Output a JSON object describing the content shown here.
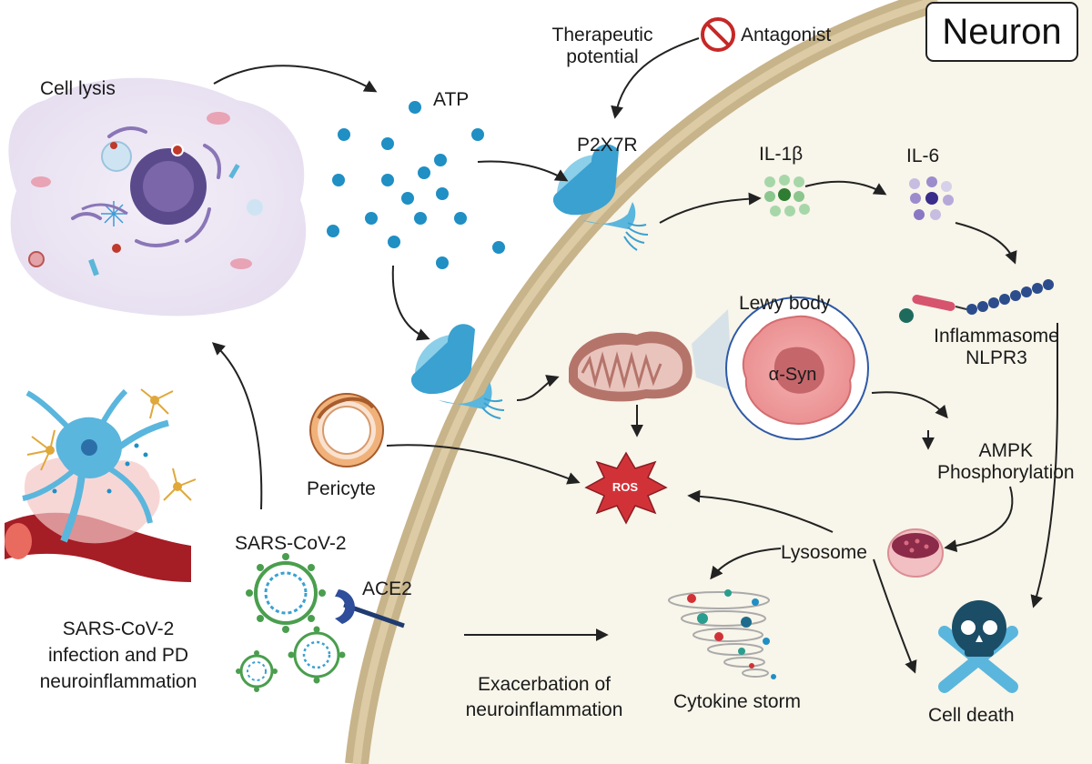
{
  "title": "Neuron",
  "labels": {
    "cell_lysis": "Cell lysis",
    "atp": "ATP",
    "therapeutic_potential": "Therapeutic\npotential",
    "antagonist": "Antagonist",
    "p2x7r": "P2X7R",
    "il1b": "IL-1β",
    "il6": "IL-6",
    "lewy_body": "Lewy body",
    "alpha_syn": "α-Syn",
    "inflammasome": "Inflammasome\nNLPR3",
    "ampk": "AMPK\nPhosphorylation",
    "pericyte": "Pericyte",
    "ros": "ROS",
    "sars_cov2": "SARS-CoV-2",
    "ace2": "ACE2",
    "lysosome": "Lysosome",
    "infection": "SARS-CoV-2\ninfection and PD\nneuroinflammation",
    "exacerbation": "Exacerbation of\nneuroinflammation",
    "cytokine_storm": "Cytokine storm",
    "cell_death": "Cell death"
  },
  "colors": {
    "membrane": "#c8b48a",
    "cytoplasm": "#f8f5ea",
    "atp_dot": "#1f8fc4",
    "receptor": "#5ab6dd",
    "ros": "#d13238",
    "virus": "#4a9e4e",
    "skull": "#1b4d66"
  }
}
